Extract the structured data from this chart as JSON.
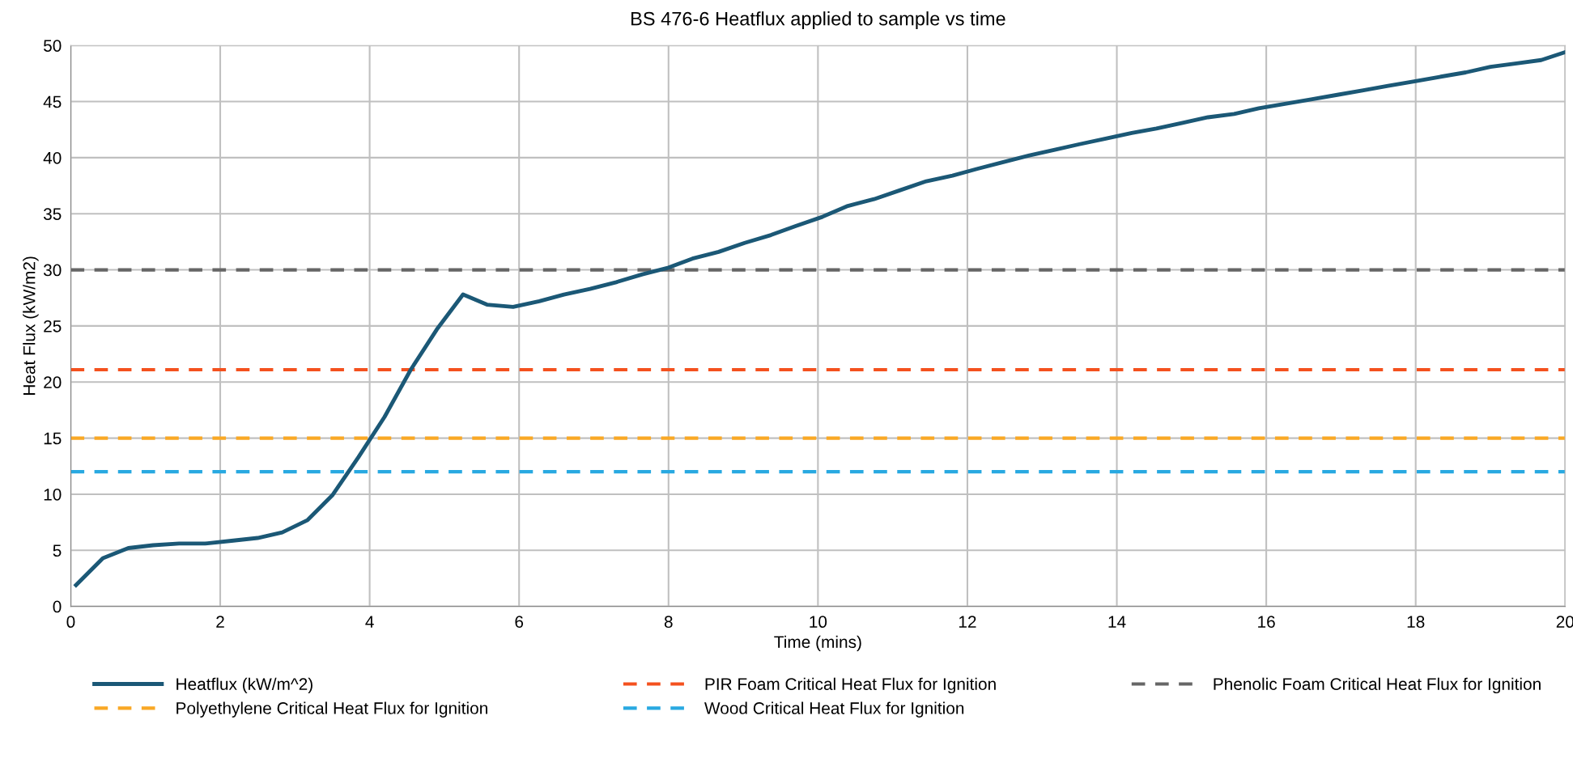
{
  "chart_data": {
    "type": "line",
    "title": "BS 476-6 Heatflux applied to sample vs time",
    "xlabel": "Time (mins)",
    "ylabel": "Heat Flux (kW/m2)",
    "series": [
      {
        "name": "Heatflux (kW/m^2)",
        "color": "#1b5876",
        "x": [
          0.07,
          0.43,
          0.77,
          1.1,
          1.45,
          1.8,
          2.15,
          2.5,
          2.83,
          3.17,
          3.5,
          3.85,
          4.2,
          4.55,
          4.9,
          5.25,
          5.57,
          5.92,
          6.27,
          6.6,
          6.95,
          7.3,
          7.65,
          8.0,
          8.32,
          8.67,
          9.02,
          9.37,
          9.7,
          10.05,
          10.4,
          10.75,
          11.1,
          11.45,
          11.8,
          12.13,
          12.48,
          12.83,
          13.17,
          13.5,
          13.85,
          14.2,
          14.53,
          14.88,
          15.22,
          15.57,
          15.9,
          16.25,
          16.6,
          16.95,
          17.3,
          17.63,
          17.98,
          18.32,
          18.67,
          19.0,
          19.35,
          19.68,
          20.0
        ],
        "values": [
          1.9,
          4.3,
          5.2,
          5.45,
          5.6,
          5.6,
          5.85,
          6.1,
          6.6,
          7.7,
          9.9,
          13.3,
          16.9,
          21.1,
          24.7,
          27.8,
          26.9,
          26.7,
          27.2,
          27.8,
          28.3,
          28.9,
          29.6,
          30.2,
          31.0,
          31.6,
          32.4,
          33.1,
          33.9,
          34.7,
          35.7,
          36.3,
          37.1,
          37.9,
          38.4,
          39.0,
          39.6,
          40.2,
          40.7,
          41.2,
          41.7,
          42.2,
          42.6,
          43.1,
          43.6,
          43.9,
          44.4,
          44.8,
          45.2,
          45.6,
          46.0,
          46.4,
          46.8,
          47.2,
          47.6,
          48.1,
          48.4,
          48.7,
          49.4
        ]
      }
    ],
    "ref_lines": [
      {
        "axis": "y",
        "value": 15,
        "label": "Polyethylene Critical Heat Flux for Ignition",
        "color": "#f9a825",
        "line_style": "dashed"
      },
      {
        "axis": "y",
        "value": 21.1,
        "label": "PIR Foam Critical Heat Flux for Ignition",
        "color": "#f4511e",
        "line_style": "dashed"
      },
      {
        "axis": "y",
        "value": 12,
        "label": "Wood Critical Heat Flux for Ignition",
        "color": "#29a9e1",
        "line_style": "dashed"
      },
      {
        "axis": "y",
        "value": 30,
        "label": "Phenolic Foam Critical Heat Flux for Ignition",
        "color": "#666666",
        "line_style": "dashed"
      }
    ],
    "xlim": [
      0,
      20
    ],
    "xticks": [
      0,
      2,
      4,
      6,
      8,
      10,
      12,
      14,
      16,
      18,
      20
    ],
    "ylim": [
      0,
      50
    ],
    "yticks": [
      0,
      5,
      10,
      15,
      20,
      25,
      30,
      35,
      40,
      45,
      50
    ],
    "grid": true,
    "legend": "bottom",
    "line_style": "solid",
    "marker": "none"
  }
}
